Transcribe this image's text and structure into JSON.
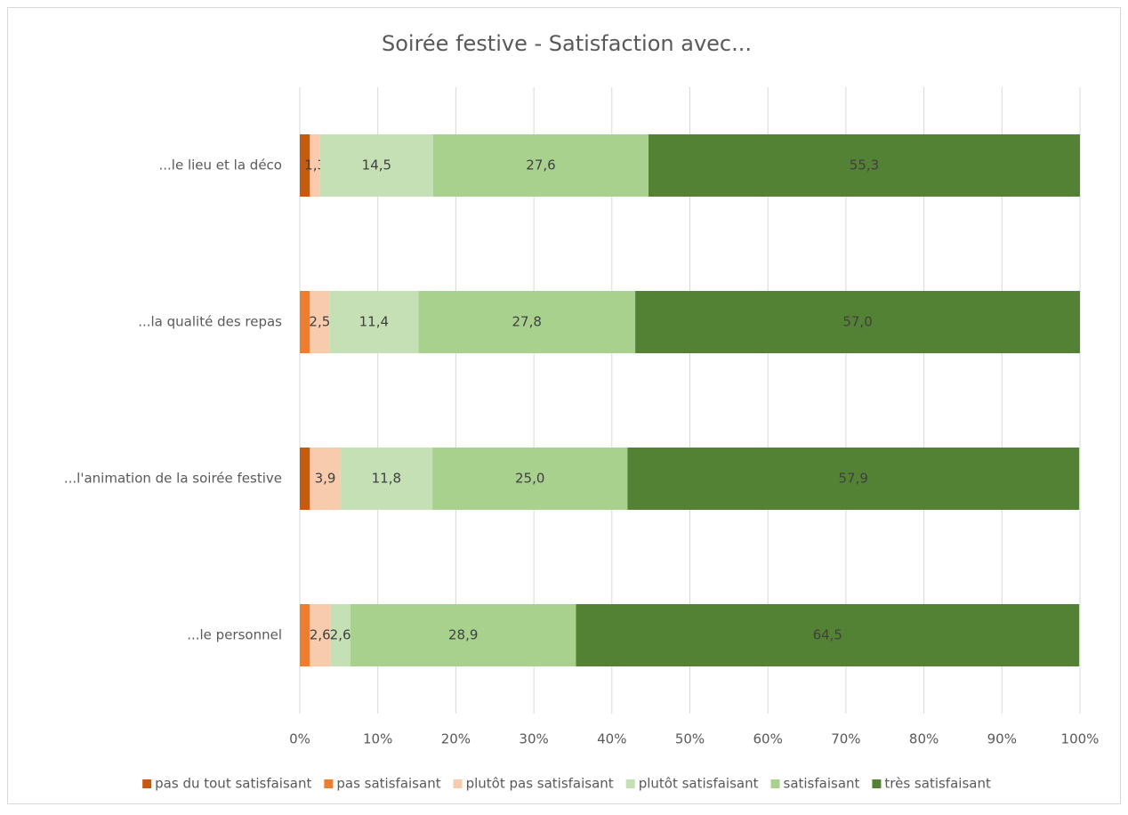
{
  "chart_data": {
    "type": "stacked_barh",
    "title": "Soirée festive - Satisfaction avec...",
    "categories": [
      "...le lieu et la déco",
      "...la qualité des repas",
      "...l'animation de la soirée festive",
      "...le personnel"
    ],
    "series": [
      {
        "name": "pas du tout satisfaisant",
        "color": "#c55a11",
        "values": [
          1.3,
          0,
          1.3,
          0
        ],
        "value_labels": [
          null,
          null,
          null,
          null
        ]
      },
      {
        "name": "pas satisfaisant",
        "color": "#ed7d31",
        "values": [
          0,
          1.3,
          0,
          1.3
        ],
        "value_labels": [
          null,
          null,
          null,
          null
        ]
      },
      {
        "name": "plutôt pas satisfaisant",
        "color": "#f8cbad",
        "values": [
          1.3,
          2.5,
          3.9,
          2.6
        ],
        "value_labels": [
          "1,3",
          "2,5",
          "3,9",
          "2,6"
        ]
      },
      {
        "name": "plutôt satisfaisant",
        "color": "#c5e0b4",
        "values": [
          14.5,
          11.4,
          11.8,
          2.6
        ],
        "value_labels": [
          "14,5",
          "11,4",
          "11,8",
          "2,6"
        ]
      },
      {
        "name": "satisfaisant",
        "color": "#a9d18e",
        "values": [
          27.6,
          27.8,
          25.0,
          28.9
        ],
        "value_labels": [
          "27,6",
          "27,8",
          "25,0",
          "28,9"
        ]
      },
      {
        "name": "très satisfaisant",
        "color": "#548235",
        "values": [
          55.3,
          57.0,
          57.9,
          64.5
        ],
        "value_labels": [
          "55,3",
          "57,0",
          "57,9",
          "64,5"
        ]
      }
    ],
    "xlim": [
      0,
      100
    ],
    "xticks": [
      {
        "value": 0,
        "label": "0%"
      },
      {
        "value": 10,
        "label": "10%"
      },
      {
        "value": 20,
        "label": "20%"
      },
      {
        "value": 30,
        "label": "30%"
      },
      {
        "value": 40,
        "label": "40%"
      },
      {
        "value": 50,
        "label": "50%"
      },
      {
        "value": 60,
        "label": "60%"
      },
      {
        "value": 70,
        "label": "70%"
      },
      {
        "value": 80,
        "label": "80%"
      },
      {
        "value": 90,
        "label": "90%"
      },
      {
        "value": 100,
        "label": "100%"
      }
    ],
    "grid": true,
    "legend": "bottom"
  }
}
